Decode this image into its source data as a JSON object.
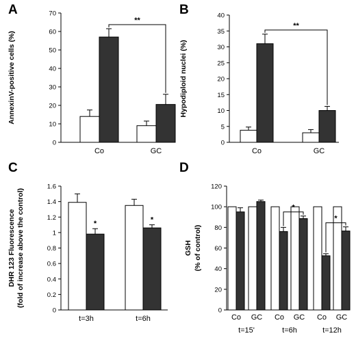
{
  "chart_data": [
    {
      "type": "bar",
      "panel_label": "A",
      "ylabel": "AnnexinV-positive cells (%)",
      "ylim": [
        0,
        70
      ],
      "yticks": [
        0,
        10,
        20,
        30,
        40,
        50,
        60,
        70
      ],
      "categories": [
        "Co",
        "GC"
      ],
      "series": [
        {
          "values": [
            14,
            9
          ],
          "errors": [
            3.5,
            2.5
          ],
          "color": "#ffffff"
        },
        {
          "values": [
            57,
            20.5
          ],
          "errors": [
            4.5,
            5.5
          ],
          "color": "#333333"
        }
      ],
      "significance": [
        {
          "from": [
            0,
            1
          ],
          "to": [
            1,
            1
          ],
          "label": "**"
        }
      ]
    },
    {
      "type": "bar",
      "panel_label": "B",
      "ylabel": "Hypodiploid nuclei (%)",
      "ylim": [
        0,
        40
      ],
      "yticks": [
        0,
        5,
        10,
        15,
        20,
        25,
        30,
        35,
        40
      ],
      "categories": [
        "Co",
        "GC"
      ],
      "series": [
        {
          "values": [
            3.8,
            3
          ],
          "errors": [
            1,
            1
          ],
          "color": "#ffffff"
        },
        {
          "values": [
            31,
            10
          ],
          "errors": [
            3,
            1.3
          ],
          "color": "#333333"
        }
      ],
      "significance": [
        {
          "from": [
            0,
            1
          ],
          "to": [
            1,
            1
          ],
          "label": "**"
        }
      ]
    },
    {
      "type": "bar",
      "panel_label": "C",
      "ylabel": "DHR 123 Fluorescence (fold of increase above the control)",
      "ylabel_lines": [
        "DHR 123 Fluorescence",
        "(fold of increase above the control)"
      ],
      "ylim": [
        0,
        1.6
      ],
      "yticks": [
        0,
        0.2,
        0.4,
        0.6,
        0.8,
        1,
        1.2,
        1.4,
        1.6
      ],
      "categories": [
        "t=3h",
        "t=6h"
      ],
      "series": [
        {
          "values": [
            1.39,
            1.35
          ],
          "errors": [
            0.11,
            0.08
          ],
          "color": "#ffffff"
        },
        {
          "values": [
            0.98,
            1.06
          ],
          "errors": [
            0.07,
            0.04
          ],
          "color": "#333333"
        }
      ],
      "star_marks": [
        {
          "category": 0,
          "series": 1,
          "label": "*"
        },
        {
          "category": 1,
          "series": 1,
          "label": "*"
        }
      ]
    },
    {
      "type": "bar",
      "panel_label": "D",
      "ylabel": "GSH (% of control)",
      "ylabel_lines": [
        "GSH",
        "(% of control)"
      ],
      "ylim": [
        0,
        120
      ],
      "yticks": [
        0,
        20,
        40,
        60,
        80,
        100,
        120
      ],
      "categories": [
        "Co",
        "GC",
        "Co",
        "GC",
        "Co",
        "GC"
      ],
      "groups": [
        "t=15'",
        "t=6h",
        "t=12h"
      ],
      "series": [
        {
          "values": [
            100,
            100,
            100,
            100,
            100,
            100
          ],
          "errors": [
            0,
            0,
            0,
            0,
            0,
            0
          ],
          "color": "#ffffff"
        },
        {
          "values": [
            95,
            105,
            76,
            88.5,
            52.5,
            76.5
          ],
          "errors": [
            4,
            1.5,
            4,
            2.5,
            2,
            4
          ],
          "color": "#333333"
        }
      ],
      "significance": [
        {
          "from": [
            2,
            1
          ],
          "to": [
            3,
            1
          ],
          "label": "*"
        },
        {
          "from": [
            4,
            1
          ],
          "to": [
            5,
            1
          ],
          "label": "*"
        }
      ]
    }
  ]
}
